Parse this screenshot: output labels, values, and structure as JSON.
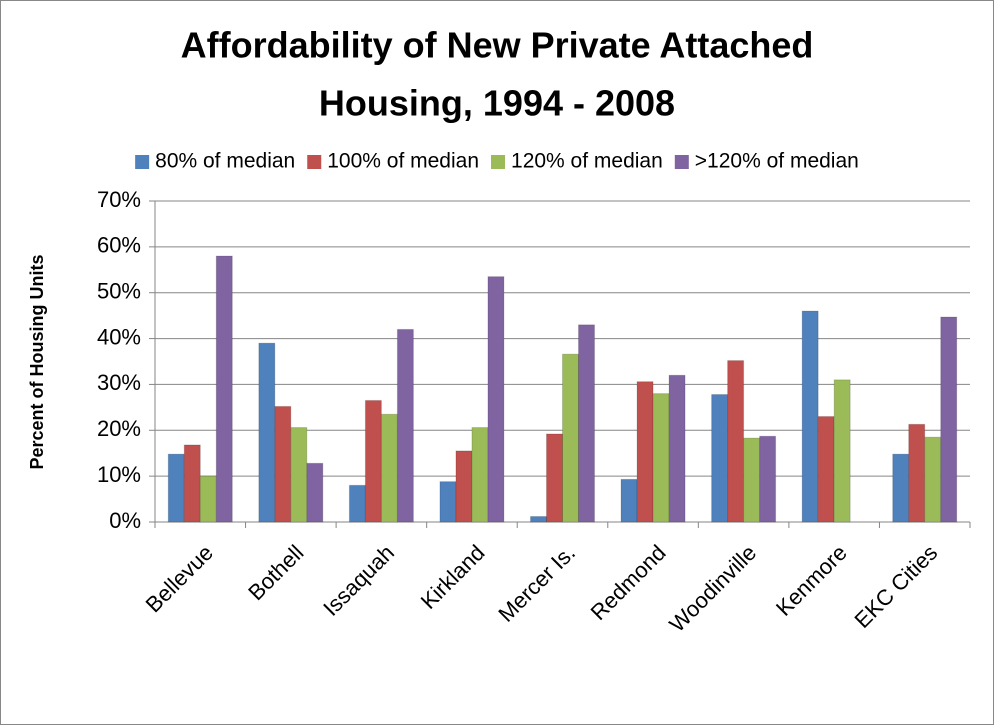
{
  "chart_data": {
    "type": "bar",
    "title": [
      "Affordability of New Private Attached",
      "Housing, 1994 - 2008"
    ],
    "y_label": "Percent of Housing Units",
    "categories": [
      "Bellevue",
      "Bothell",
      "Issaquah",
      "Kirkland",
      "Mercer Is.",
      "Redmond",
      "Woodinville",
      "Kenmore",
      "EKC Cities"
    ],
    "series": [
      {
        "name": "80% of median",
        "color": "#4f81bd",
        "values": [
          14.8,
          39,
          8,
          8.8,
          1.2,
          9.3,
          27.8,
          46,
          14.8
        ]
      },
      {
        "name": "100% of median",
        "color": "#c0504d",
        "values": [
          16.8,
          25.2,
          26.5,
          15.5,
          19.2,
          30.6,
          35.2,
          23,
          21.3
        ]
      },
      {
        "name": "120% of median",
        "color": "#9bbb59",
        "values": [
          10,
          20.6,
          23.5,
          20.6,
          36.6,
          28,
          18.3,
          31,
          18.5
        ]
      },
      {
        "name": ">120% of median",
        "color": "#8064a2",
        "values": [
          58,
          12.8,
          42,
          53.5,
          43,
          32,
          18.7,
          null,
          44.7
        ]
      }
    ],
    "ylim": [
      0,
      70
    ],
    "yticks": [
      {
        "value": 0,
        "label": "0%"
      },
      {
        "value": 10,
        "label": "10%"
      },
      {
        "value": 20,
        "label": "20%"
      },
      {
        "value": 30,
        "label": "30%"
      },
      {
        "value": 40,
        "label": "40%"
      },
      {
        "value": 50,
        "label": "50%"
      },
      {
        "value": 60,
        "label": "60%"
      },
      {
        "value": 70,
        "label": "70%"
      }
    ],
    "grid": true,
    "legend": "top"
  }
}
